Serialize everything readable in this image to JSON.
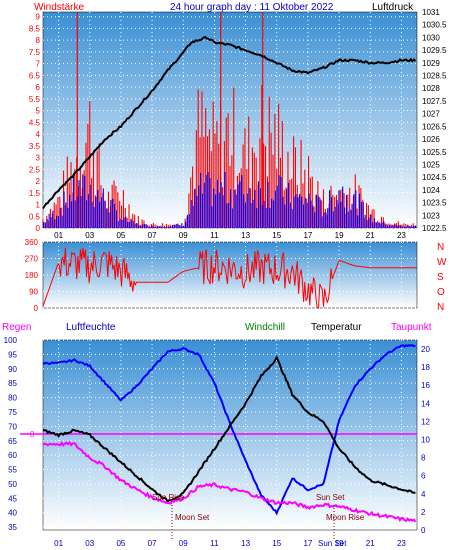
{
  "header": {
    "left": "Windstärke",
    "center": "24 hour graph day : 11 Oktober 2022",
    "right": "Luftdruck"
  },
  "colors": {
    "wind": "#ff0000",
    "gust": "#0000ff",
    "pressure": "#000000",
    "humidity": "#0000ff",
    "temperature": "#000000",
    "dewpoint": "#ff00ff",
    "windchill": "#008000",
    "axis_red": "#ff0000",
    "axis_blue": "#0000cc"
  },
  "direction_labels": [
    "N",
    "W",
    "S",
    "O",
    "N"
  ],
  "bottom_labels": {
    "regen": "Regen",
    "luftfeuchte": "Luftfeuchte",
    "windchill": "Windchill",
    "temperatur": "Temperatur",
    "taupunkt": "Taupunkt",
    "zero_marker": "0"
  },
  "annotations": {
    "sun_rise": "Sun Rise",
    "sun_set": "Sun Set",
    "moon_set": "Moon Set",
    "moon_rise": "Moon Rise",
    "sun_set_axis": "Sun Set"
  },
  "time_ticks": [
    "01",
    "03",
    "05",
    "07",
    "09",
    "11",
    "13",
    "15",
    "17",
    "19",
    "21",
    "23"
  ],
  "chart_data": [
    {
      "type": "line",
      "title": "24 hour graph day : 11 Oktober 2022",
      "left_axis": {
        "label": "Windstärke",
        "ticks": [
          "0",
          "0.5",
          "1",
          "1.5",
          "2",
          "2.5",
          "3",
          "3.5",
          "4",
          "4.5",
          "5",
          "5.5",
          "6",
          "6.5",
          "7",
          "7.5",
          "8",
          "8.5",
          "9"
        ],
        "range": [
          0,
          9.2
        ]
      },
      "right_axis": {
        "label": "Luftdruck",
        "ticks": [
          "1031",
          "1030.5",
          "1030",
          "1029.5",
          "1029",
          "1028.5",
          "1028",
          "1027.5",
          "1027",
          "1026.5",
          "1026",
          "1025.5",
          "1025",
          "1024.5",
          "1024",
          "1023.5",
          "1023",
          "1022.5"
        ],
        "range": [
          1022.5,
          1031
        ]
      },
      "x_ticks": [
        "01",
        "03",
        "05",
        "07",
        "09",
        "11",
        "13",
        "15",
        "17",
        "19",
        "21",
        "23"
      ],
      "series": [
        {
          "name": "Luftdruck",
          "color": "#000000",
          "x": [
            0,
            1,
            2,
            3,
            4,
            5,
            6,
            7,
            8,
            9,
            9.5,
            10,
            10.5,
            11,
            12,
            13,
            14,
            15,
            16,
            17,
            18,
            19,
            20,
            21,
            22,
            23,
            24
          ],
          "values": [
            1023.3,
            1024.0,
            1024.6,
            1025.3,
            1026.0,
            1026.5,
            1027.2,
            1027.9,
            1028.7,
            1029.4,
            1029.8,
            1029.9,
            1030.0,
            1029.8,
            1029.7,
            1029.5,
            1029.3,
            1029.0,
            1028.7,
            1028.6,
            1028.8,
            1029.1,
            1029.1,
            1029.0,
            1029.0,
            1029.1,
            1029.1
          ]
        },
        {
          "name": "Windstärke",
          "color": "#ff0000",
          "x": [
            0,
            1,
            2,
            3,
            4,
            5,
            6,
            7,
            8,
            9,
            10,
            11,
            12,
            13,
            14,
            15,
            16,
            17,
            18,
            19,
            20,
            21,
            22,
            23,
            24
          ],
          "values": [
            0.5,
            1.5,
            3.5,
            5.5,
            1.5,
            2.0,
            0.5,
            0.2,
            0.2,
            0.2,
            5.5,
            4.5,
            5.5,
            4.0,
            5.5,
            5.0,
            3.5,
            3.0,
            1.5,
            2.0,
            2.0,
            1.0,
            0.5,
            0.2,
            0.2
          ]
        },
        {
          "name": "Böen",
          "color": "#0000ff",
          "x": [
            0,
            1,
            2,
            3,
            4,
            5,
            6,
            7,
            8,
            9,
            10,
            11,
            12,
            13,
            14,
            15,
            16,
            17,
            18,
            19,
            20,
            21,
            22,
            23,
            24
          ],
          "values": [
            0.3,
            1.0,
            2.0,
            2.0,
            1.5,
            0.5,
            0.2,
            0.1,
            0.1,
            0.2,
            2.0,
            2.0,
            2.0,
            2.0,
            2.0,
            2.0,
            1.5,
            1.5,
            1.0,
            2.0,
            1.5,
            0.5,
            0.2,
            0.1,
            0.1
          ]
        }
      ]
    },
    {
      "type": "line",
      "left_axis": {
        "ticks": [
          "360",
          "270",
          "180",
          "90",
          "0"
        ],
        "range": [
          0,
          360
        ]
      },
      "right_labels": [
        "N",
        "W",
        "S",
        "O",
        "N"
      ],
      "x": [
        0,
        1,
        2,
        3,
        4,
        5,
        6,
        7,
        8,
        9,
        10,
        11,
        12,
        13,
        14,
        15,
        16,
        17,
        18,
        19,
        20,
        21,
        22,
        23,
        24
      ],
      "values": [
        10,
        250,
        240,
        230,
        250,
        200,
        140,
        140,
        140,
        200,
        220,
        230,
        220,
        200,
        220,
        210,
        200,
        100,
        30,
        260,
        230,
        220,
        220,
        220,
        220
      ]
    },
    {
      "type": "line",
      "left_axis": {
        "label": "Luftfeuchte",
        "ticks": [
          "100",
          "95",
          "90",
          "85",
          "80",
          "75",
          "70",
          "65",
          "60",
          "55",
          "50",
          "45",
          "40",
          "35"
        ],
        "range": [
          34,
          100
        ]
      },
      "right_axis": {
        "label": "Temperatur",
        "ticks": [
          "20",
          "18",
          "16",
          "14",
          "12",
          "10",
          "8",
          "6",
          "4",
          "2",
          "0"
        ],
        "range": [
          0,
          21
        ]
      },
      "x_ticks": [
        "01",
        "03",
        "05",
        "07",
        "09",
        "11",
        "13",
        "15",
        "17",
        "19",
        "21",
        "23"
      ],
      "series": [
        {
          "name": "Luftfeuchte",
          "color": "#0000ff",
          "x": [
            0,
            1,
            2,
            3,
            4,
            5,
            6,
            7,
            8,
            9,
            10,
            11,
            12,
            13,
            14,
            15,
            16,
            17,
            18,
            19,
            20,
            21,
            22,
            23,
            24
          ],
          "values": [
            92,
            92,
            93,
            91,
            85,
            79,
            84,
            90,
            96,
            97,
            95,
            85,
            71,
            58,
            46,
            40,
            52,
            48,
            50,
            72,
            84,
            90,
            95,
            98,
            98
          ]
        },
        {
          "name": "Temperatur",
          "color": "#000000",
          "x": [
            0,
            1,
            2,
            3,
            4,
            5,
            6,
            7,
            8,
            9,
            10,
            11,
            12,
            13,
            14,
            15,
            16,
            17,
            18,
            19,
            20,
            21,
            22,
            23,
            24
          ],
          "values": [
            11,
            10.5,
            11,
            10.5,
            9,
            7.5,
            6,
            4.5,
            3.2,
            4,
            6.5,
            9,
            11.5,
            14,
            17,
            19,
            15,
            13,
            12,
            9,
            7,
            5.5,
            5,
            4.5,
            4
          ]
        },
        {
          "name": "Taupunkt",
          "color": "#ff00ff",
          "x": [
            0,
            1,
            2,
            3,
            4,
            5,
            6,
            7,
            8,
            9,
            10,
            11,
            12,
            13,
            14,
            15,
            16,
            17,
            18,
            19,
            20,
            21,
            22,
            23,
            24
          ],
          "values": [
            9.5,
            9.5,
            9.5,
            8,
            7,
            5.5,
            4.5,
            3.6,
            3.0,
            3.5,
            4.8,
            5,
            4.5,
            4.2,
            3.5,
            3,
            3,
            2.5,
            2.8,
            2.6,
            2.2,
            1.8,
            1.5,
            1.2,
            1.0
          ]
        }
      ]
    }
  ]
}
